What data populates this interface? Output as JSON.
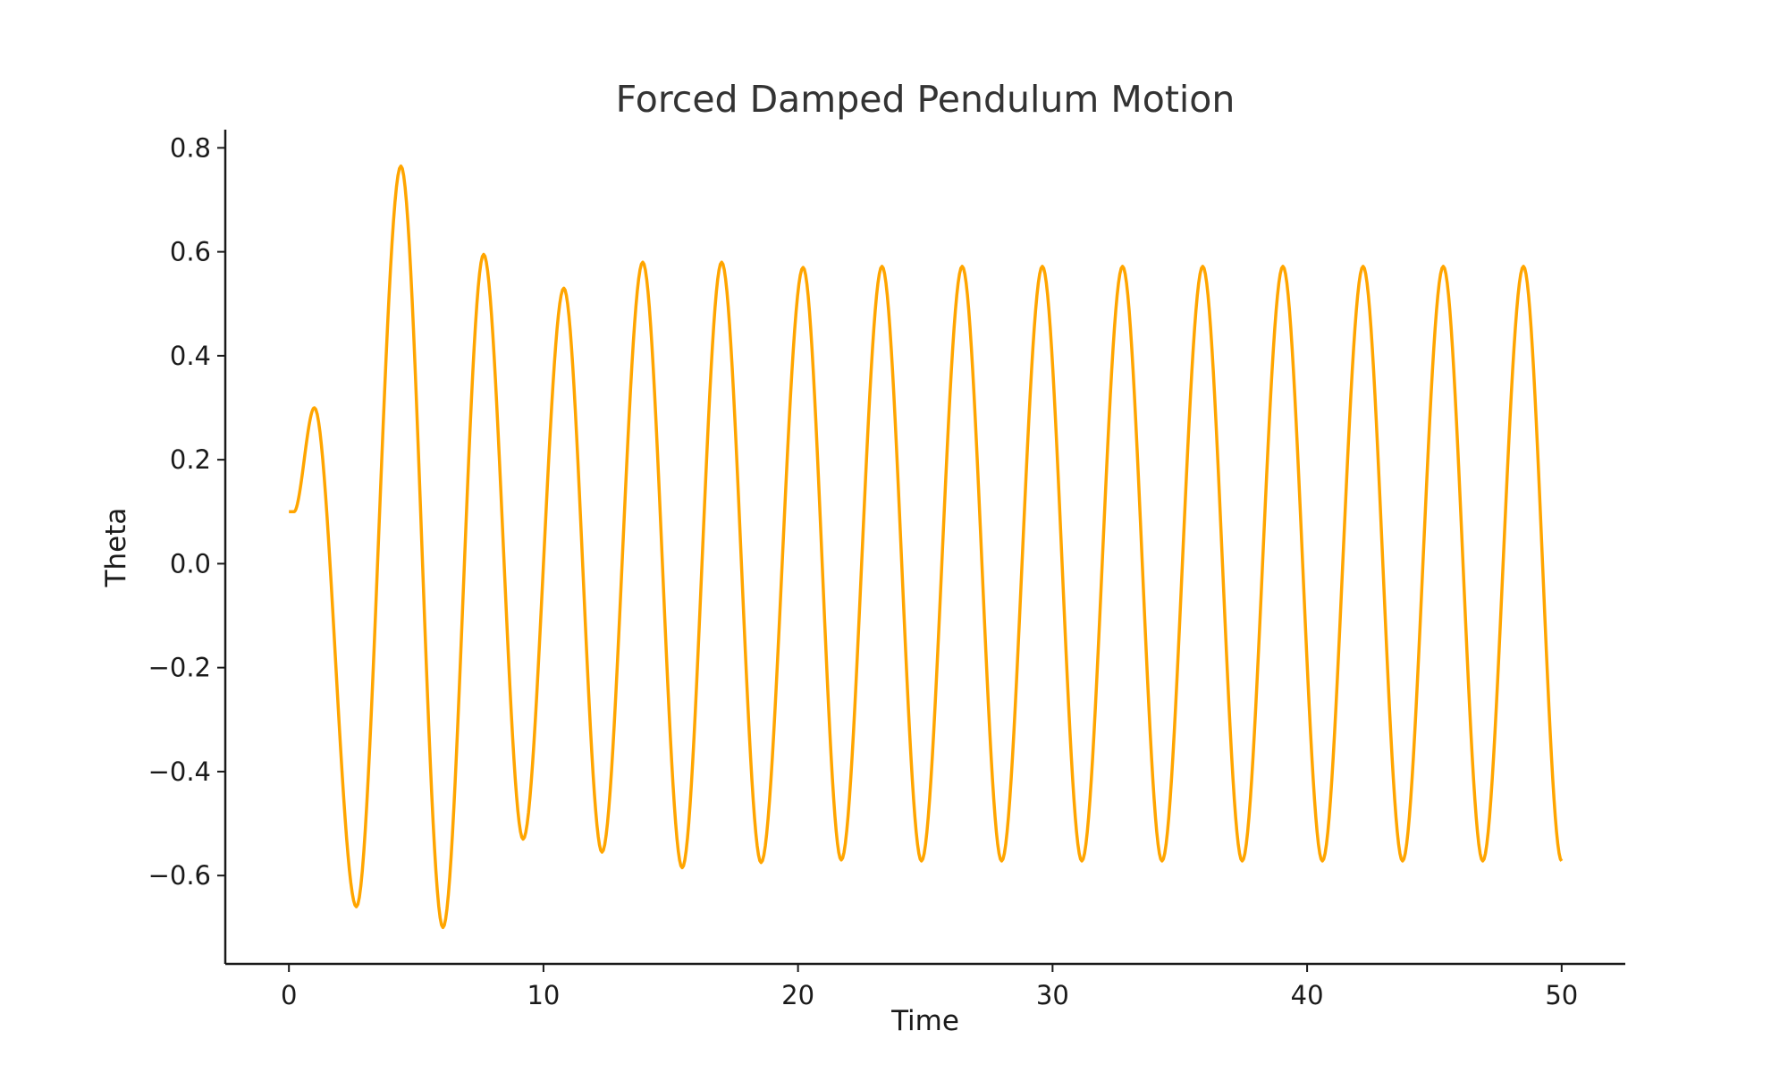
{
  "chart_data": {
    "type": "line",
    "title": "Forced Damped Pendulum Motion",
    "xlabel": "Time",
    "ylabel": "Theta",
    "xlim": [
      -2.5,
      52.5
    ],
    "ylim": [
      -0.77,
      0.835
    ],
    "xticks": [
      0,
      10,
      20,
      30,
      40,
      50
    ],
    "xtick_labels": [
      "0",
      "10",
      "20",
      "30",
      "40",
      "50"
    ],
    "yticks": [
      -0.6,
      -0.4,
      -0.2,
      0.0,
      0.2,
      0.4,
      0.6,
      0.8
    ],
    "ytick_labels": [
      "−0.6",
      "−0.4",
      "−0.2",
      "0.0",
      "0.2",
      "0.4",
      "0.6",
      "0.8"
    ],
    "grid": false,
    "legend": "none",
    "series": [
      {
        "color": "#FFA500",
        "x": [
          0.0,
          0.2,
          1.0,
          2.65,
          4.4,
          6.05,
          7.65,
          9.2,
          10.8,
          12.3,
          13.9,
          15.45,
          17.0,
          18.55,
          20.2,
          21.7,
          23.3,
          24.85,
          26.45,
          28.0,
          29.6,
          31.15,
          32.75,
          34.3,
          35.9,
          37.45,
          39.05,
          40.6,
          42.2,
          43.75,
          45.35,
          46.9,
          48.5,
          50.0
        ],
        "y": [
          0.1,
          0.1,
          0.3,
          -0.66,
          0.765,
          -0.7,
          0.595,
          -0.53,
          0.53,
          -0.555,
          0.58,
          -0.585,
          0.58,
          -0.575,
          0.57,
          -0.57,
          0.572,
          -0.572,
          0.572,
          -0.572,
          0.572,
          -0.572,
          0.572,
          -0.572,
          0.572,
          -0.572,
          0.572,
          -0.572,
          0.572,
          -0.572,
          0.572,
          -0.572,
          0.572,
          -0.572
        ]
      }
    ]
  }
}
